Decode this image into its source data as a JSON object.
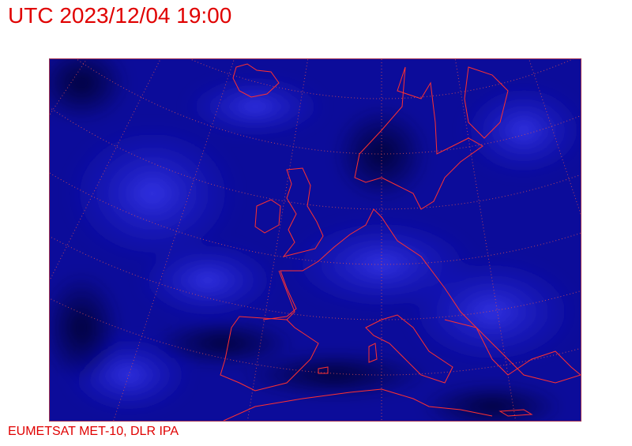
{
  "title": "UTC 2023/12/04 19:00",
  "credit": "EUMETSAT MET-10, DLR IPA",
  "map": {
    "region": "Europe / North Atlantic",
    "imagery": "satellite",
    "colors": {
      "background": "#0a0a70",
      "cloud": "#2a2ae0",
      "coastline": "#ff3030",
      "graticule": "#e05050",
      "text": "#e00000"
    }
  }
}
